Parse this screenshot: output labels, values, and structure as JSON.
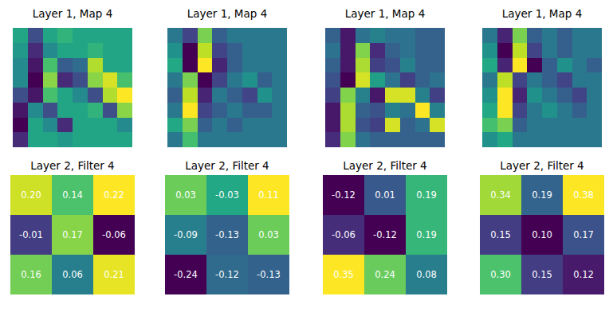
{
  "chart_data": [
    {
      "type": "heatmap",
      "title": "Layer 1, Map 4",
      "tick_labels": false,
      "cells": [
        [
          0.6,
          0.3,
          0.6,
          0.65,
          0.6,
          0.6,
          0.6,
          0.6
        ],
        [
          0.55,
          0.2,
          0.5,
          0.6,
          0.6,
          0.65,
          0.6,
          0.6
        ],
        [
          0.5,
          0.15,
          0.7,
          0.35,
          0.4,
          0.85,
          0.6,
          0.6
        ],
        [
          0.5,
          0.1,
          0.8,
          0.2,
          0.3,
          0.8,
          0.9,
          0.7
        ],
        [
          0.3,
          0.15,
          0.7,
          0.6,
          0.5,
          0.3,
          0.85,
          0.95
        ],
        [
          0.15,
          0.5,
          0.3,
          0.6,
          0.6,
          0.65,
          0.3,
          0.8
        ],
        [
          0.1,
          0.6,
          0.5,
          0.2,
          0.6,
          0.6,
          0.6,
          0.5
        ],
        [
          0.2,
          0.6,
          0.6,
          0.55,
          0.6,
          0.6,
          0.6,
          0.6
        ]
      ]
    },
    {
      "type": "heatmap",
      "title": "Layer 1, Map 4",
      "tick_labels": false,
      "cells": [
        [
          0.5,
          0.4,
          0.7,
          0.45,
          0.5,
          0.5,
          0.5,
          0.5
        ],
        [
          0.55,
          0.3,
          0.75,
          0.4,
          0.45,
          0.5,
          0.5,
          0.5
        ],
        [
          0.6,
          0.3,
          0.8,
          0.35,
          0.45,
          0.5,
          0.5,
          0.5
        ],
        [
          0.5,
          0.7,
          0.3,
          0.4,
          0.5,
          0.55,
          0.45,
          0.5
        ],
        [
          0.45,
          0.75,
          0.35,
          0.5,
          0.45,
          0.4,
          0.55,
          0.5
        ],
        [
          0.5,
          0.8,
          0.4,
          0.45,
          0.5,
          0.45,
          0.45,
          0.5
        ],
        [
          0.6,
          0.7,
          0.45,
          0.5,
          0.45,
          0.5,
          0.5,
          0.5
        ],
        [
          0.5,
          0.65,
          0.5,
          0.5,
          0.5,
          0.5,
          0.5,
          0.5
        ]
      ]
    },
    {
      "type": "heatmap",
      "title": "Layer 1, Map 4",
      "tick_labels": false,
      "cells": [
        [
          0.4,
          0.2,
          0.45,
          0.5,
          0.45,
          0.45,
          0.4,
          0.4
        ],
        [
          0.45,
          0.2,
          0.8,
          0.25,
          0.4,
          0.45,
          0.4,
          0.4
        ],
        [
          0.4,
          0.2,
          0.85,
          0.3,
          0.35,
          0.5,
          0.4,
          0.4
        ],
        [
          0.35,
          0.15,
          0.9,
          0.6,
          0.45,
          0.3,
          0.4,
          0.45
        ],
        [
          0.3,
          0.8,
          0.5,
          0.2,
          0.9,
          0.9,
          0.5,
          0.3
        ],
        [
          0.2,
          0.85,
          0.4,
          0.35,
          0.5,
          0.45,
          0.95,
          0.5
        ],
        [
          0.2,
          0.85,
          0.35,
          0.3,
          0.9,
          0.4,
          0.45,
          0.9
        ],
        [
          0.25,
          0.8,
          0.45,
          0.4,
          0.4,
          0.4,
          0.4,
          0.4
        ]
      ]
    },
    {
      "type": "heatmap",
      "title": "Layer 1, Map 4",
      "tick_labels": false,
      "cells": [
        [
          0.5,
          0.35,
          0.7,
          0.45,
          0.5,
          0.45,
          0.5,
          0.5
        ],
        [
          0.55,
          0.3,
          0.75,
          0.4,
          0.5,
          0.45,
          0.5,
          0.5
        ],
        [
          0.6,
          0.35,
          0.8,
          0.3,
          0.45,
          0.55,
          0.5,
          0.45
        ],
        [
          0.5,
          0.75,
          0.4,
          0.5,
          0.45,
          0.4,
          0.5,
          0.5
        ],
        [
          0.55,
          0.8,
          0.35,
          0.55,
          0.5,
          0.45,
          0.4,
          0.5
        ],
        [
          0.6,
          0.8,
          0.4,
          0.5,
          0.55,
          0.5,
          0.45,
          0.5
        ],
        [
          0.65,
          0.7,
          0.45,
          0.5,
          0.5,
          0.5,
          0.5,
          0.5
        ],
        [
          0.55,
          0.6,
          0.5,
          0.5,
          0.5,
          0.5,
          0.5,
          0.5
        ]
      ]
    },
    {
      "type": "heatmap",
      "title": "Layer 2, Filter 4",
      "tick_labels": false,
      "data_labels": true,
      "cells": [
        [
          0.2,
          0.14,
          0.22
        ],
        [
          -0.01,
          0.17,
          -0.06
        ],
        [
          0.16,
          0.06,
          0.21
        ]
      ],
      "value_labels": [
        [
          "0.20",
          "0.14",
          "0.22"
        ],
        [
          "-0.01",
          "0.17",
          "-0.06"
        ],
        [
          "0.16",
          "0.06",
          "0.21"
        ]
      ]
    },
    {
      "type": "heatmap",
      "title": "Layer 2, Filter 4",
      "tick_labels": false,
      "data_labels": true,
      "cells": [
        [
          0.03,
          -0.03,
          0.11
        ],
        [
          -0.09,
          -0.13,
          0.03
        ],
        [
          -0.24,
          -0.12,
          -0.13
        ]
      ],
      "value_labels": [
        [
          "0.03",
          "-0.03",
          "0.11"
        ],
        [
          "-0.09",
          "-0.13",
          "0.03"
        ],
        [
          "-0.24",
          "-0.12",
          "-0.13"
        ]
      ]
    },
    {
      "type": "heatmap",
      "title": "Layer 2, Filter 4",
      "tick_labels": false,
      "data_labels": true,
      "cells": [
        [
          -0.12,
          0.01,
          0.19
        ],
        [
          -0.06,
          -0.12,
          0.19
        ],
        [
          0.35,
          0.24,
          0.08
        ]
      ],
      "value_labels": [
        [
          "-0.12",
          "0.01",
          "0.19"
        ],
        [
          "-0.06",
          "-0.12",
          "0.19"
        ],
        [
          "0.35",
          "0.24",
          "0.08"
        ]
      ]
    },
    {
      "type": "heatmap",
      "title": "Layer 2, Filter 4",
      "tick_labels": false,
      "data_labels": true,
      "cells": [
        [
          0.34,
          0.19,
          0.38
        ],
        [
          0.15,
          0.1,
          0.17
        ],
        [
          0.3,
          0.15,
          0.12
        ]
      ],
      "value_labels": [
        [
          "0.34",
          "0.19",
          "0.38"
        ],
        [
          "0.15",
          "0.10",
          "0.17"
        ],
        [
          "0.30",
          "0.15",
          "0.12"
        ]
      ]
    }
  ]
}
